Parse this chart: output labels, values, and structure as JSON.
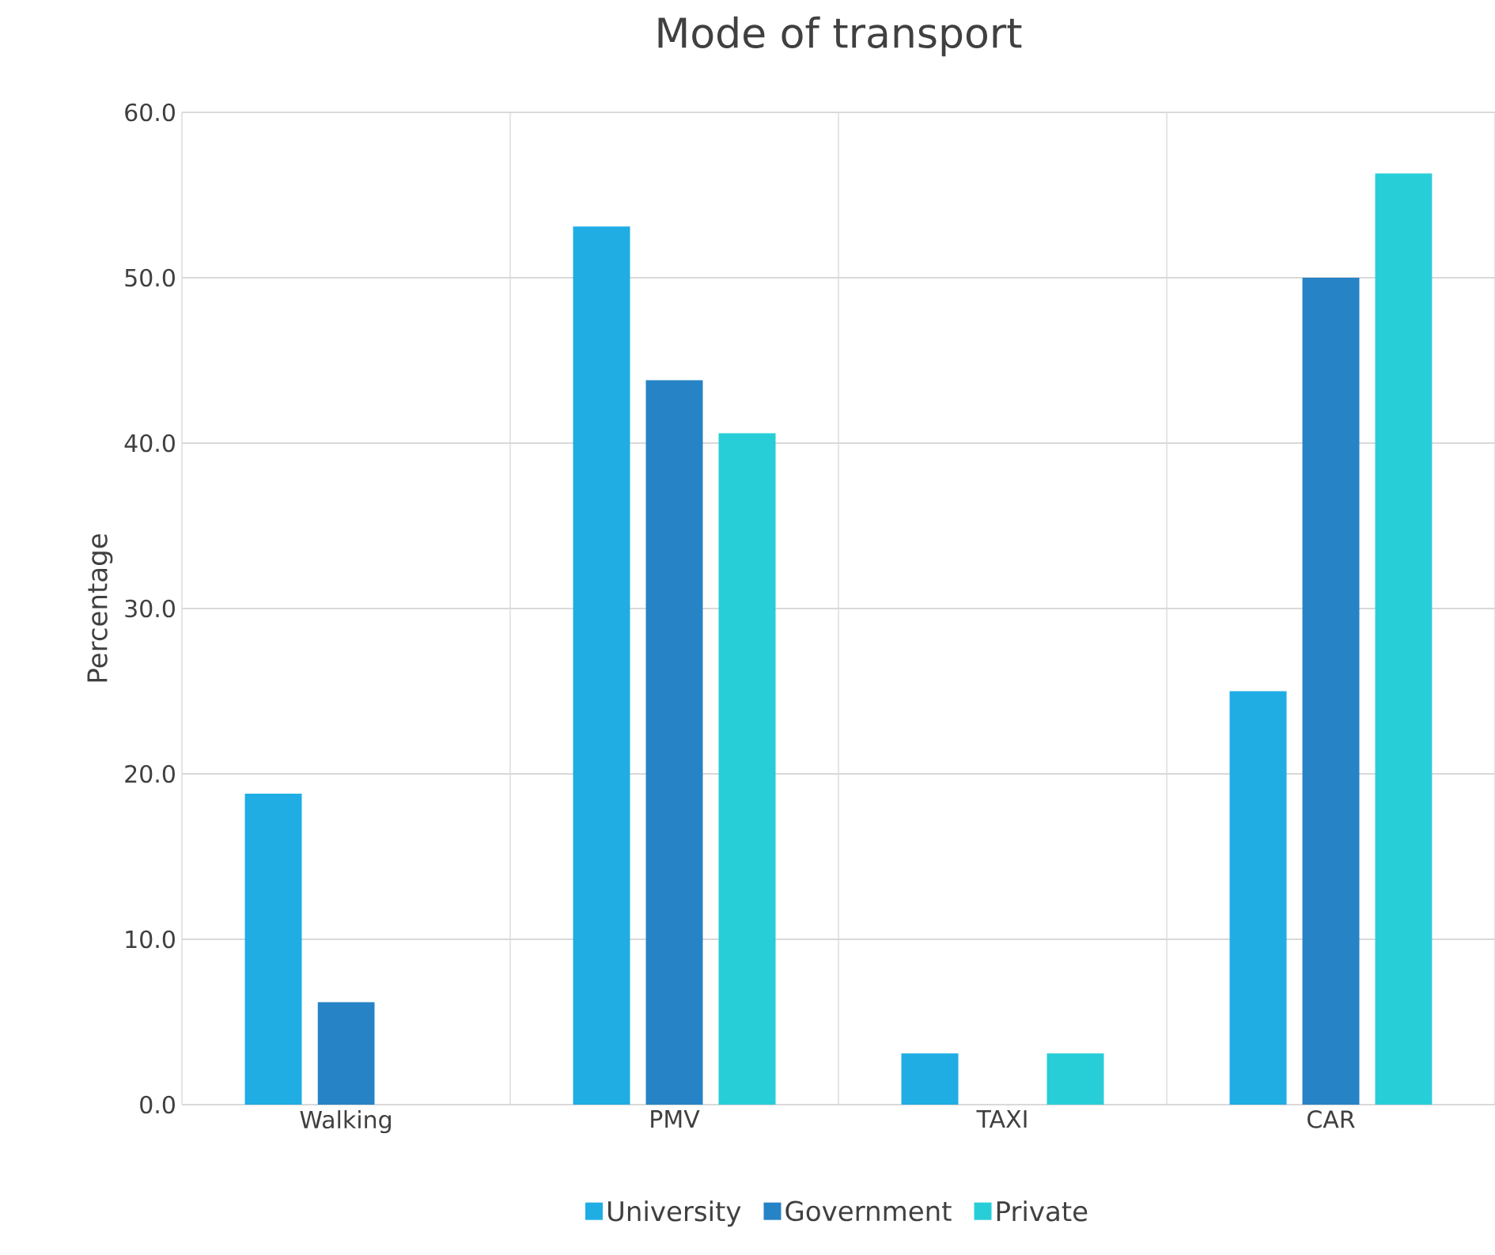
{
  "chart_data": {
    "type": "bar",
    "title": "Mode of transport",
    "ylabel": "Percentage",
    "categories": [
      "Walking",
      "PMV",
      "TAXI",
      "CAR"
    ],
    "series": [
      {
        "name": "University",
        "color": "#1fade4",
        "values": [
          18.8,
          53.1,
          3.1,
          25.0
        ]
      },
      {
        "name": "Government",
        "color": "#2683c6",
        "values": [
          6.2,
          43.8,
          0,
          50.0
        ]
      },
      {
        "name": "Private",
        "color": "#27ced7",
        "values": [
          0,
          40.6,
          3.1,
          56.3
        ]
      }
    ],
    "ylim": [
      0,
      60
    ],
    "yticks": [
      {
        "value": 0,
        "label": "0.0"
      },
      {
        "value": 10,
        "label": "10.0"
      },
      {
        "value": 20,
        "label": "20.0"
      },
      {
        "value": 30,
        "label": "30.0"
      },
      {
        "value": 40,
        "label": "40.0"
      },
      {
        "value": 50,
        "label": "50.0"
      },
      {
        "value": 60,
        "label": "60.0"
      }
    ],
    "grid": true,
    "legend": "bottom"
  }
}
